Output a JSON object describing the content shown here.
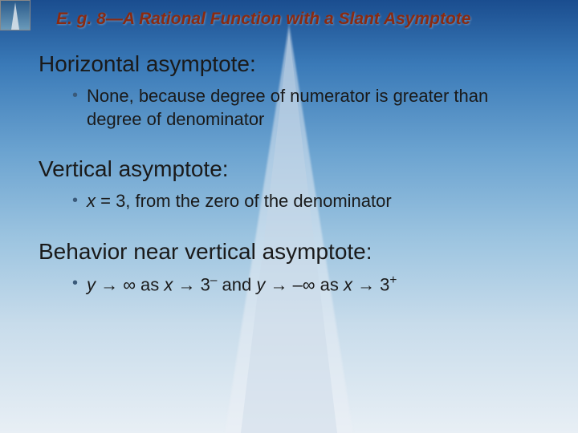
{
  "title": "E. g. 8—A Rational Function with a Slant Asymptote",
  "sections": [
    {
      "heading": "Horizontal asymptote:",
      "bullet": "None, because degree of numerator is greater than degree of denominator"
    },
    {
      "heading": "Vertical asymptote:",
      "bullet_html": "<span class='math-var'>x</span> = 3, from the zero of the denominator"
    },
    {
      "heading": "Behavior near vertical asymptote:",
      "bullet_html": "<span class='math-var'>y</span> → ∞ as <span class='math-var'>x</span> → 3<span class='sup'>–</span> and <span class='math-var'>y</span> → –∞ as <span class='math-var'>x</span> → 3<span class='sup'>+</span>"
    }
  ]
}
